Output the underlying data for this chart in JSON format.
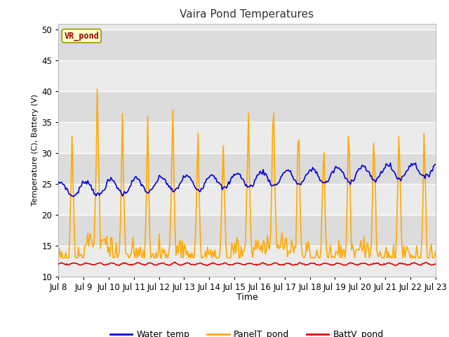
{
  "title": "Vaira Pond Temperatures",
  "xlabel": "Time",
  "ylabel": "Temperature (C), Battery (V)",
  "ylim": [
    10,
    51
  ],
  "legend_label": "VR_pond",
  "bg_color": "#e8e8e8",
  "bg_color_alt": "#d8d8d8",
  "series": {
    "water_temp": {
      "label": "Water_temp",
      "color": "#0000dd",
      "lw": 1.2
    },
    "panel_temp": {
      "label": "PanelT_pond",
      "color": "#ffaa00",
      "lw": 1.2
    },
    "batt_v": {
      "label": "BattV_pond",
      "color": "#dd0000",
      "lw": 1.2
    }
  },
  "yticks": [
    10,
    15,
    20,
    25,
    30,
    35,
    40,
    45,
    50
  ],
  "xtick_labels": [
    "Jul 8",
    "Jul 9",
    "Jul 10",
    "Jul 11",
    "Jul 12",
    "Jul 13",
    "Jul 14",
    "Jul 15",
    "Jul 16",
    "Jul 17",
    "Jul 18",
    "Jul 19",
    "Jul 20",
    "Jul 21",
    "Jul 22",
    "Jul 23"
  ],
  "n_days": 15
}
